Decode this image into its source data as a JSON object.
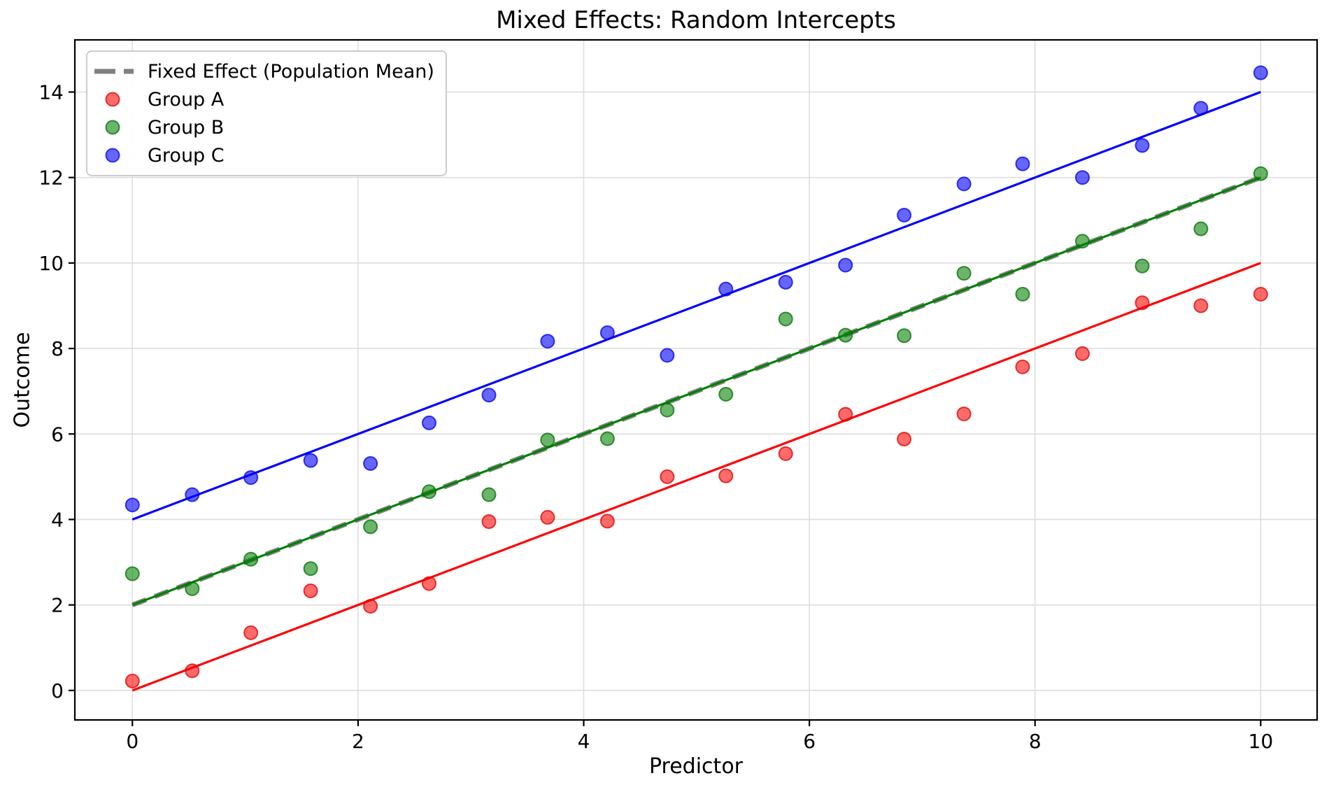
{
  "chart_data": {
    "type": "scatter",
    "title": "Mixed Effects: Random Intercepts",
    "xlabel": "Predictor",
    "ylabel": "Outcome",
    "xlim": [
      -0.51,
      10.5
    ],
    "ylim": [
      -0.69,
      15.22
    ],
    "xticks": [
      0,
      2,
      4,
      6,
      8,
      10
    ],
    "yticks": [
      0,
      2,
      4,
      6,
      8,
      10,
      12,
      14
    ],
    "grid": true,
    "grid_color": "#dddddd",
    "spine_color": "#000000",
    "legend_position": "upper left",
    "x": [
      0,
      0.53,
      1.05,
      1.58,
      2.11,
      2.63,
      3.16,
      3.68,
      4.21,
      4.74,
      5.26,
      5.79,
      6.32,
      6.84,
      7.37,
      7.89,
      8.42,
      8.95,
      9.47,
      10
    ],
    "fixed_effect": {
      "label": "Fixed Effect (Population Mean)",
      "color": "#808080",
      "intercept": 2,
      "slope": 1,
      "line_width": 7,
      "dash": [
        21,
        13
      ]
    },
    "series": [
      {
        "name": "Group A",
        "line_color": "#ff0000",
        "point_fill": "rgba(255,0,0,0.58)",
        "point_edge": "rgba(216,0,0,0.75)",
        "intercept": 0,
        "slope": 1,
        "y": [
          0.22,
          0.46,
          1.35,
          2.33,
          1.97,
          2.5,
          3.95,
          4.05,
          3.96,
          5.0,
          5.02,
          5.54,
          6.46,
          5.88,
          6.47,
          7.57,
          7.88,
          9.07,
          9.0,
          9.27
        ]
      },
      {
        "name": "Group B",
        "line_color": "#008000",
        "point_fill": "rgba(0,128,0,0.58)",
        "point_edge": "rgba(0,110,0,0.75)",
        "intercept": 2,
        "slope": 1,
        "y": [
          2.73,
          2.38,
          3.07,
          2.85,
          3.83,
          4.65,
          4.58,
          5.86,
          5.89,
          6.56,
          6.93,
          8.69,
          8.31,
          8.3,
          9.76,
          9.27,
          10.51,
          9.93,
          10.8,
          12.09
        ]
      },
      {
        "name": "Group C",
        "line_color": "#0000ff",
        "point_fill": "rgba(0,0,255,0.60)",
        "point_edge": "rgba(0,0,225,0.75)",
        "intercept": 4,
        "slope": 1,
        "y": [
          4.34,
          4.58,
          4.98,
          5.38,
          5.31,
          6.26,
          6.91,
          8.17,
          8.37,
          7.84,
          9.39,
          9.55,
          9.95,
          11.12,
          11.85,
          12.32,
          12.0,
          12.75,
          13.62,
          14.45
        ]
      }
    ]
  }
}
